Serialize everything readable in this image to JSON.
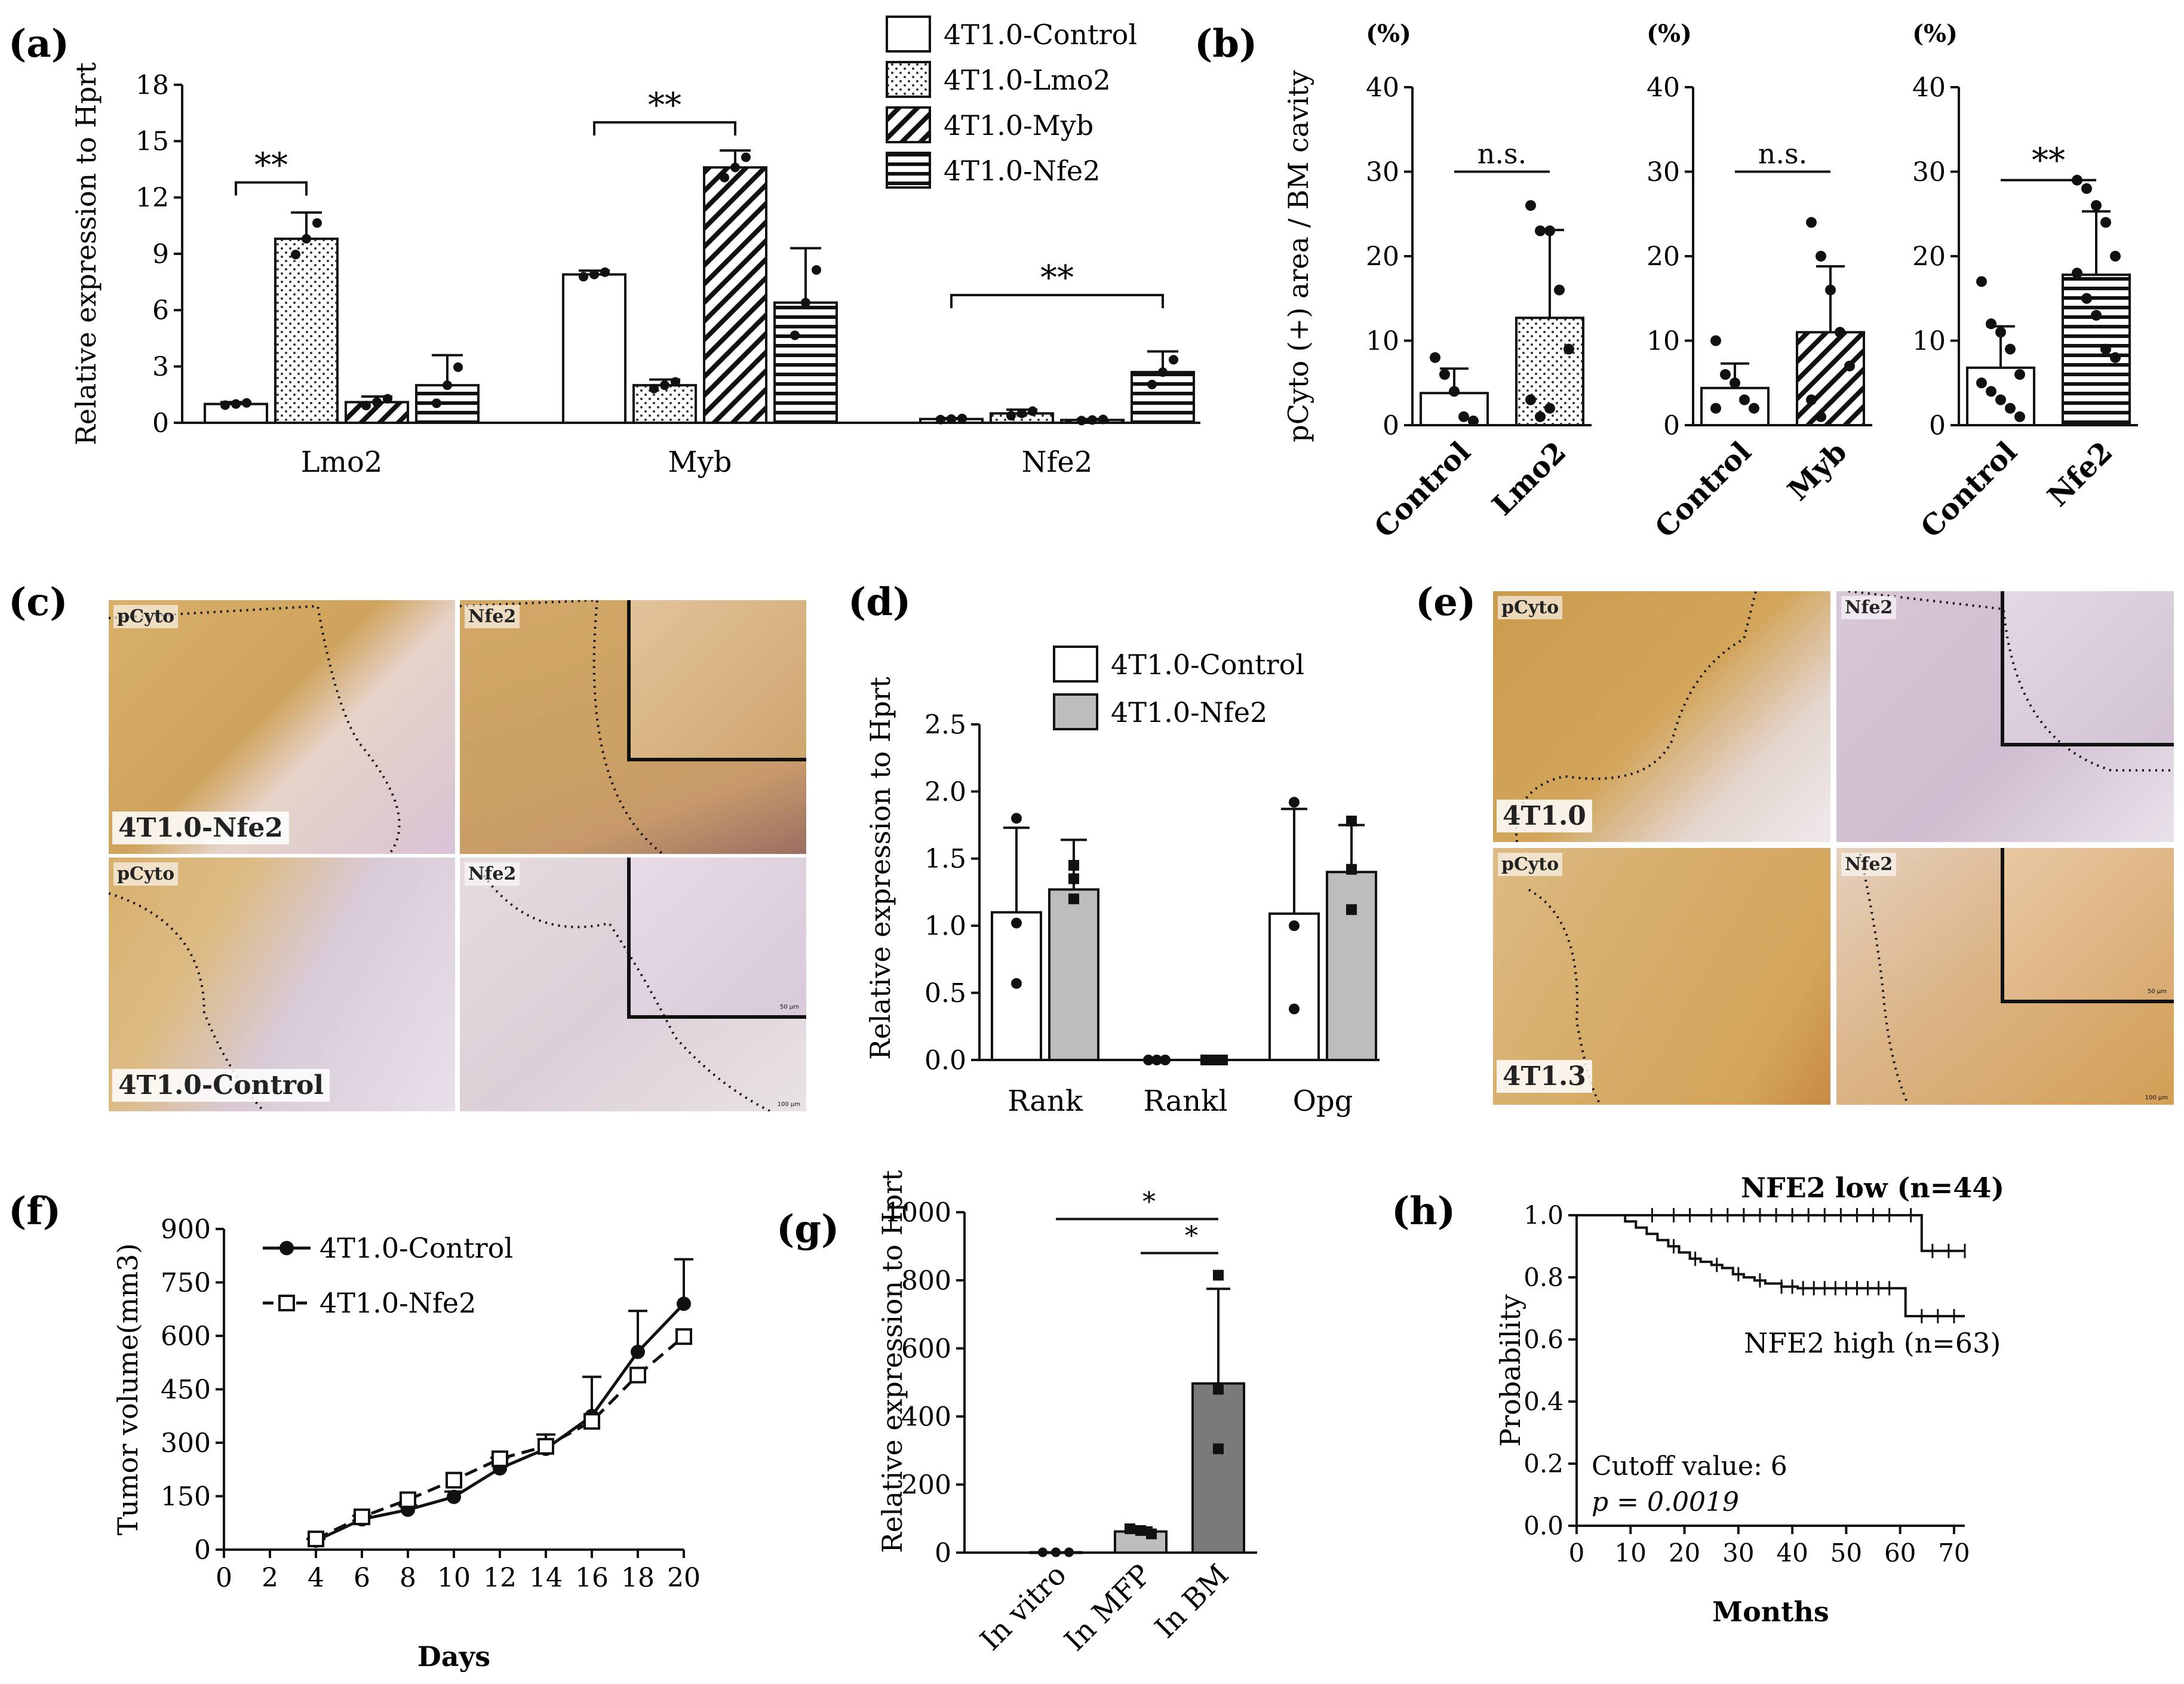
{
  "panel_letters": {
    "a": "(a)",
    "b": "(b)",
    "c": "(c)",
    "d": "(d)",
    "e": "(e)",
    "f": "(f)",
    "g": "(g)",
    "h": "(h)"
  },
  "colors": {
    "ink": "#111111",
    "gray": "#bdbdbd",
    "dark_gray": "#7a7a7a",
    "tissue_brown": "#cfa660",
    "tissue_purple": "#c9b6cc"
  },
  "chart_data": [
    {
      "id": "a",
      "type": "bar",
      "categories": [
        "Lmo2",
        "Myb",
        "Nfe2"
      ],
      "ylabel": "Relative expression to Hprt",
      "ylim": [
        0,
        18
      ],
      "yticks": [
        "0",
        "3",
        "6",
        "9",
        "12",
        "15",
        "18"
      ],
      "legend": [
        "4T1.0-Control",
        "4T1.0-Lmo2",
        "4T1.0-Myb",
        "4T1.0-Nfe2"
      ],
      "series": [
        {
          "name": "4T1.0-Control",
          "values": [
            1.0,
            7.9,
            0.2
          ],
          "sd": [
            0.1,
            0.2,
            0.05
          ],
          "pattern": "open"
        },
        {
          "name": "4T1.0-Lmo2",
          "values": [
            9.8,
            2.0,
            0.5
          ],
          "sd": [
            1.4,
            0.3,
            0.2
          ],
          "pattern": "dots"
        },
        {
          "name": "4T1.0-Myb",
          "values": [
            1.1,
            13.6,
            0.15
          ],
          "sd": [
            0.3,
            0.9,
            0.05
          ],
          "pattern": "diag"
        },
        {
          "name": "4T1.0-Nfe2",
          "values": [
            2.0,
            6.4,
            2.7
          ],
          "sd": [
            1.6,
            2.9,
            1.1
          ],
          "pattern": "horiz"
        }
      ],
      "significance": [
        {
          "label": "**",
          "group": 0,
          "from": 0,
          "to": 1,
          "y": 12.8
        },
        {
          "label": "**",
          "group": 1,
          "from": 0,
          "to": 2,
          "y": 16.0
        },
        {
          "label": "**",
          "group": 2,
          "from": 0,
          "to": 3,
          "y": 6.8
        }
      ]
    },
    {
      "id": "b",
      "type": "bar",
      "ylabel": "pCyto (+) area / BM cavity",
      "unit_label": "(%)",
      "ylim": [
        0,
        40
      ],
      "yticks": [
        "0",
        "10",
        "20",
        "30",
        "40"
      ],
      "subplots": [
        {
          "categories": [
            "Control",
            "Lmo2"
          ],
          "values": [
            3.8,
            12.7
          ],
          "sd": [
            2.9,
            10.4
          ],
          "patterns": [
            "open",
            "dots"
          ],
          "sig": "n.s.",
          "points": [
            [
              8,
              6,
              4,
              1,
              0.5
            ],
            [
              26,
              23,
              23,
              16,
              9,
              3,
              1,
              2
            ]
          ]
        },
        {
          "categories": [
            "Control",
            "Myb"
          ],
          "values": [
            4.4,
            11.0
          ],
          "sd": [
            2.9,
            7.8
          ],
          "patterns": [
            "open",
            "diag"
          ],
          "sig": "n.s.",
          "points": [
            [
              10,
              6,
              5,
              3,
              2,
              2
            ],
            [
              24,
              20,
              16,
              11,
              7,
              3,
              1
            ]
          ]
        },
        {
          "categories": [
            "Control",
            "Nfe2"
          ],
          "values": [
            6.8,
            17.8
          ],
          "sd": [
            4.9,
            7.5
          ],
          "patterns": [
            "open",
            "horiz"
          ],
          "sig": "**",
          "points": [
            [
              17,
              12,
              11,
              9,
              6,
              5,
              4,
              3,
              2,
              1
            ],
            [
              29,
              28,
              26,
              24,
              20,
              18,
              15,
              13,
              9,
              8
            ]
          ]
        }
      ]
    },
    {
      "id": "d",
      "type": "bar",
      "categories": [
        "Rank",
        "Rankl",
        "Opg"
      ],
      "ylabel": "Relative expression to Hprt",
      "ylim": [
        0,
        2.5
      ],
      "yticks": [
        "0.0",
        "0.5",
        "1.0",
        "1.5",
        "2.0",
        "2.5"
      ],
      "legend": [
        "4T1.0-Control",
        "4T1.0-Nfe2"
      ],
      "series": [
        {
          "name": "4T1.0-Control",
          "values": [
            1.1,
            0.0,
            1.09
          ],
          "sd": [
            0.63,
            0.0,
            0.78
          ],
          "fill": "open",
          "points": [
            [
              1.8,
              1.02,
              0.57
            ],
            [
              0,
              0,
              0
            ],
            [
              1.92,
              1.0,
              0.38
            ]
          ]
        },
        {
          "name": "4T1.0-Nfe2",
          "values": [
            1.27,
            0.0,
            1.4
          ],
          "sd": [
            0.37,
            0.0,
            0.35
          ],
          "fill": "gray",
          "points": [
            [
              1.45,
              1.35,
              1.2
            ],
            [
              0,
              0,
              0
            ],
            [
              1.78,
              1.42,
              1.12
            ]
          ]
        }
      ]
    },
    {
      "id": "f",
      "type": "line",
      "xlabel": "Days",
      "ylabel": "Tumor volume(mm3)",
      "x": [
        4,
        6,
        8,
        10,
        12,
        14,
        16,
        18,
        20
      ],
      "xlim": [
        0,
        20
      ],
      "xticks": [
        "0",
        "2",
        "4",
        "6",
        "8",
        "10",
        "12",
        "14",
        "16",
        "18",
        "20"
      ],
      "ylim": [
        0,
        900
      ],
      "yticks": [
        "0",
        "150",
        "300",
        "450",
        "600",
        "750",
        "900"
      ],
      "legend": [
        "4T1.0-Control",
        "4T1.0-Nfe2"
      ],
      "series": [
        {
          "name": "4T1.0-Control",
          "values": [
            25,
            85,
            112,
            148,
            228,
            283,
            375,
            555,
            690
          ],
          "err": [
            5,
            10,
            12,
            15,
            30,
            40,
            110,
            115,
            125
          ],
          "marker": "filled-circle",
          "dash": false
        },
        {
          "name": "4T1.0-Nfe2",
          "values": [
            30,
            92,
            140,
            195,
            255,
            290,
            360,
            490,
            598
          ],
          "err": [
            0,
            0,
            0,
            0,
            0,
            0,
            0,
            0,
            0
          ],
          "marker": "open-square",
          "dash": true
        }
      ]
    },
    {
      "id": "g",
      "type": "bar",
      "categories": [
        "In vitro",
        "In MFP",
        "In BM"
      ],
      "ylabel": "Relative expression to Hprt",
      "ylim": [
        0,
        1000
      ],
      "yticks": [
        "0",
        "200",
        "400",
        "600",
        "800",
        "1000"
      ],
      "values": [
        1,
        62,
        497
      ],
      "sd": [
        0.5,
        12,
        278
      ],
      "points": [
        [
          1,
          1,
          1
        ],
        [
          70,
          65,
          55
        ],
        [
          815,
          480,
          305
        ]
      ],
      "significance": [
        {
          "label": "*",
          "from": 0,
          "to": 2,
          "y": 980
        },
        {
          "label": "*",
          "from": 1,
          "to": 2,
          "y": 880
        }
      ]
    },
    {
      "id": "h",
      "type": "line",
      "xlabel": "Months",
      "ylabel": "Probability",
      "xlim": [
        0,
        72
      ],
      "xticks": [
        "0",
        "10",
        "20",
        "30",
        "40",
        "50",
        "60",
        "70"
      ],
      "ylim": [
        0,
        1.0
      ],
      "yticks": [
        "0.0",
        "0.2",
        "0.4",
        "0.6",
        "0.8",
        "1.0"
      ],
      "series": [
        {
          "name": "NFE2 low (n=44)",
          "x": [
            0,
            64,
            64,
            72
          ],
          "y": [
            1.0,
            1.0,
            0.885,
            0.885
          ],
          "censor_x": [
            14,
            18,
            21,
            25,
            28,
            31,
            34,
            37,
            40,
            43,
            46,
            49,
            52,
            55,
            58,
            62,
            66,
            69,
            72
          ],
          "step": true
        },
        {
          "name": "NFE2 high (n=63)",
          "x": [
            0,
            9,
            11,
            13,
            15,
            17,
            19,
            21,
            23,
            25,
            27,
            29,
            31,
            33,
            35,
            38,
            41,
            44,
            61,
            61,
            72
          ],
          "y": [
            1.0,
            0.98,
            0.96,
            0.94,
            0.92,
            0.9,
            0.88,
            0.86,
            0.85,
            0.84,
            0.83,
            0.81,
            0.8,
            0.79,
            0.78,
            0.77,
            0.765,
            0.765,
            0.765,
            0.675,
            0.675
          ],
          "censor_x": [
            18,
            22,
            26,
            30,
            34,
            38,
            40,
            42,
            44,
            46,
            48,
            50,
            52,
            54,
            56,
            58,
            64,
            67,
            70
          ],
          "step": true
        }
      ],
      "annotations": [
        "Cutoff value: 6",
        "p = 0.0019"
      ]
    }
  ],
  "micrographs": {
    "c": {
      "top_label": "4T1.0-Nfe2",
      "bottom_label": "4T1.0-Control",
      "stain_left": "pCyto",
      "stain_right": "Nfe2",
      "scale_inset": "50 μm",
      "scale_main": "100 μm"
    },
    "e": {
      "top_label": "4T1.0",
      "bottom_label": "4T1.3",
      "stain_left": "pCyto",
      "stain_right": "Nfe2",
      "scale_inset": "50 μm",
      "scale_main": "100 μm"
    }
  }
}
